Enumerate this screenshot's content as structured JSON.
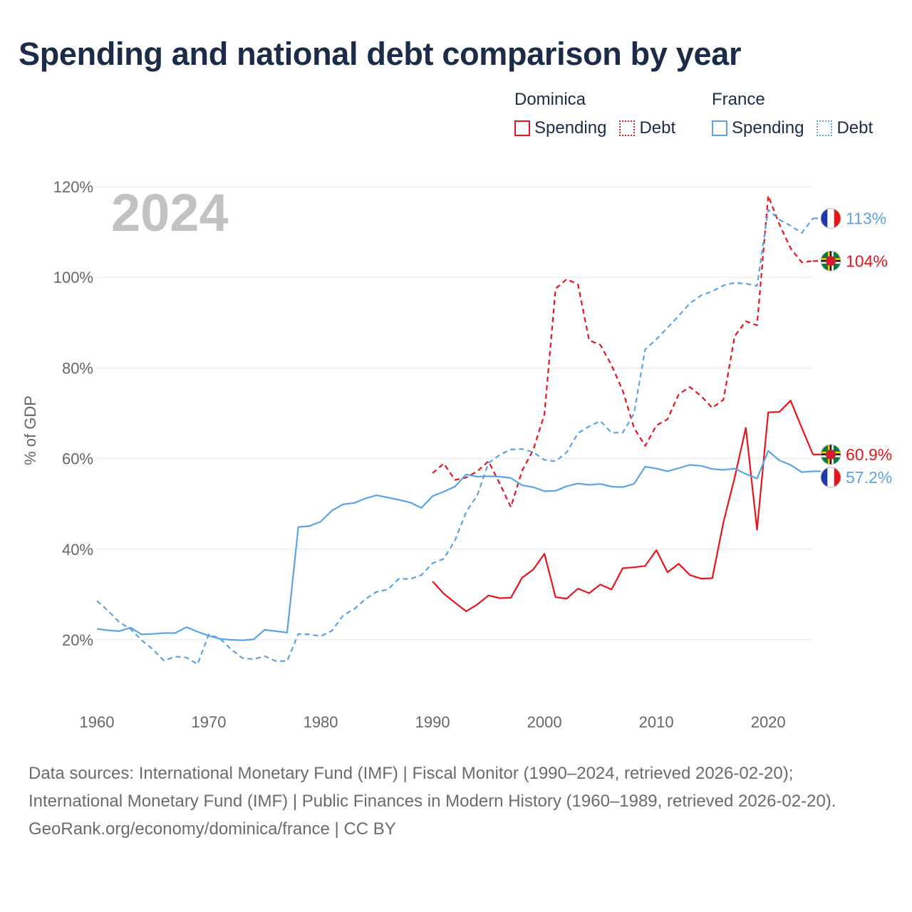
{
  "title": "Spending and national debt comparison by year",
  "legend": {
    "groups": [
      {
        "name": "Dominica",
        "color": "#e8141b",
        "items": [
          {
            "label": "Spending",
            "style": "solid"
          },
          {
            "label": "Debt",
            "style": "dotted"
          }
        ]
      },
      {
        "name": "France",
        "color": "#5aa3e6",
        "items": [
          {
            "label": "Spending",
            "style": "solid"
          },
          {
            "label": "Debt",
            "style": "dotted"
          }
        ]
      }
    ]
  },
  "footer": {
    "sources": "Data sources: International Monetary Fund (IMF) | Fiscal Monitor (1990–2024, retrieved 2026-02-20); International Monetary Fund (IMF) | Public Finances in Modern History (1960–1989, retrieved 2026-02-20).",
    "credit": "GeoRank.org/economy/dominica/france | CC BY"
  },
  "chart_data": {
    "type": "line",
    "title": "Spending and national debt comparison by year",
    "year_label": "2024",
    "ylabel": "% of GDP",
    "xlabel": "",
    "xlim": [
      1960,
      2024
    ],
    "ylim": [
      8,
      122
    ],
    "x_ticks": [
      1960,
      1970,
      1980,
      1990,
      2000,
      2010,
      2020
    ],
    "y_ticks": [
      20,
      40,
      60,
      80,
      100,
      120
    ],
    "y_tick_labels": [
      "20%",
      "40%",
      "60%",
      "80%",
      "100%",
      "120%"
    ],
    "grid": true,
    "series": [
      {
        "name": "Dominica Spending",
        "country": "Dominica",
        "metric": "Spending",
        "color": "#e8141b",
        "dash": "solid",
        "x": [
          1990,
          1991,
          1992,
          1993,
          1994,
          1995,
          1996,
          1997,
          1998,
          1999,
          2000,
          2001,
          2002,
          2003,
          2004,
          2005,
          2006,
          2007,
          2008,
          2009,
          2010,
          2011,
          2012,
          2013,
          2014,
          2015,
          2016,
          2017,
          2018,
          2019,
          2020,
          2021,
          2022,
          2023,
          2024
        ],
        "values": [
          32.9,
          30.2,
          28.2,
          26.3,
          27.8,
          29.8,
          29.2,
          29.3,
          33.7,
          35.5,
          39.0,
          29.4,
          29.1,
          31.3,
          30.3,
          32.2,
          31.1,
          35.8,
          36.0,
          36.3,
          39.8,
          34.9,
          36.8,
          34.3,
          33.5,
          33.6,
          46.0,
          55.8,
          66.8,
          44.3,
          70.2,
          70.3,
          72.8,
          66.8,
          60.9
        ],
        "end_label": "60.9%"
      },
      {
        "name": "Dominica Debt",
        "country": "Dominica",
        "metric": "Debt",
        "color": "#e8141b",
        "dash": "dashed",
        "x": [
          1990,
          1991,
          1992,
          1993,
          1994,
          1995,
          1996,
          1997,
          1998,
          1999,
          2000,
          2001,
          2002,
          2003,
          2004,
          2005,
          2006,
          2007,
          2008,
          2009,
          2010,
          2011,
          2012,
          2013,
          2014,
          2015,
          2016,
          2017,
          2018,
          2019,
          2020,
          2021,
          2022,
          2023,
          2024
        ],
        "values": [
          56.8,
          58.9,
          55.3,
          55.8,
          57.2,
          59.4,
          54.5,
          49.3,
          57.3,
          61.9,
          69.8,
          97.5,
          99.6,
          98.4,
          86.1,
          85.1,
          80.6,
          75.0,
          66.8,
          62.8,
          67.3,
          68.7,
          74.2,
          75.8,
          73.8,
          71.2,
          73.0,
          87.0,
          90.3,
          89.4,
          118.0,
          111.7,
          106.4,
          103.3,
          103.6
        ],
        "end_label": "104%"
      },
      {
        "name": "France Spending",
        "country": "France",
        "metric": "Spending",
        "color": "#5aa3e6",
        "dash": "solid",
        "x": [
          1960,
          1961,
          1962,
          1963,
          1964,
          1965,
          1966,
          1967,
          1968,
          1969,
          1970,
          1971,
          1972,
          1973,
          1974,
          1975,
          1976,
          1977,
          1978,
          1979,
          1980,
          1981,
          1982,
          1983,
          1984,
          1985,
          1986,
          1987,
          1988,
          1989,
          1990,
          1991,
          1992,
          1993,
          1994,
          1995,
          1996,
          1997,
          1998,
          1999,
          2000,
          2001,
          2002,
          2003,
          2004,
          2005,
          2006,
          2007,
          2008,
          2009,
          2010,
          2011,
          2012,
          2013,
          2014,
          2015,
          2016,
          2017,
          2018,
          2019,
          2020,
          2021,
          2022,
          2023,
          2024
        ],
        "values": [
          22.4,
          22.1,
          21.9,
          22.7,
          21.2,
          21.3,
          21.5,
          21.5,
          22.8,
          21.8,
          20.9,
          20.2,
          20.0,
          19.9,
          20.1,
          22.2,
          21.9,
          21.6,
          44.9,
          45.1,
          46.1,
          48.5,
          49.9,
          50.2,
          51.2,
          51.9,
          51.4,
          50.9,
          50.3,
          49.1,
          51.7,
          52.7,
          53.8,
          56.5,
          56.0,
          56.1,
          56.0,
          55.7,
          54.1,
          53.7,
          52.8,
          52.9,
          53.9,
          54.5,
          54.2,
          54.4,
          53.8,
          53.7,
          54.4,
          58.2,
          57.8,
          57.2,
          57.9,
          58.6,
          58.4,
          57.7,
          57.5,
          57.8,
          56.6,
          55.6,
          61.7,
          59.6,
          58.6,
          57.0,
          57.2
        ],
        "end_label": "57.2%"
      },
      {
        "name": "France Debt",
        "country": "France",
        "metric": "Debt",
        "color": "#5aa3e6",
        "dash": "dashed",
        "x": [
          1960,
          1961,
          1962,
          1963,
          1964,
          1965,
          1966,
          1967,
          1968,
          1969,
          1970,
          1971,
          1972,
          1973,
          1974,
          1975,
          1976,
          1977,
          1978,
          1979,
          1980,
          1981,
          1982,
          1983,
          1984,
          1985,
          1986,
          1987,
          1988,
          1989,
          1990,
          1991,
          1992,
          1993,
          1994,
          1995,
          1996,
          1997,
          1998,
          1999,
          2000,
          2001,
          2002,
          2003,
          2004,
          2005,
          2006,
          2007,
          2008,
          2009,
          2010,
          2011,
          2012,
          2013,
          2014,
          2015,
          2016,
          2017,
          2018,
          2019,
          2020,
          2021,
          2022,
          2023,
          2024
        ],
        "values": [
          28.6,
          26.4,
          23.9,
          22.4,
          19.9,
          17.9,
          15.4,
          16.3,
          16.1,
          14.6,
          21.2,
          20.3,
          17.9,
          16.0,
          15.7,
          16.4,
          15.3,
          15.3,
          21.3,
          21.2,
          20.8,
          22.0,
          25.4,
          26.8,
          29.0,
          30.6,
          31.1,
          33.5,
          33.4,
          34.3,
          36.9,
          37.9,
          41.9,
          48.2,
          51.9,
          59.0,
          60.8,
          62.0,
          62.1,
          61.4,
          59.7,
          59.4,
          61.4,
          65.6,
          67.1,
          68.3,
          65.7,
          65.7,
          69.9,
          84.1,
          86.3,
          88.9,
          91.5,
          94.3,
          96.0,
          96.9,
          98.2,
          98.8,
          98.6,
          98.1,
          114.9,
          112.7,
          111.4,
          109.8,
          113.0
        ],
        "end_label": "113%"
      }
    ]
  }
}
